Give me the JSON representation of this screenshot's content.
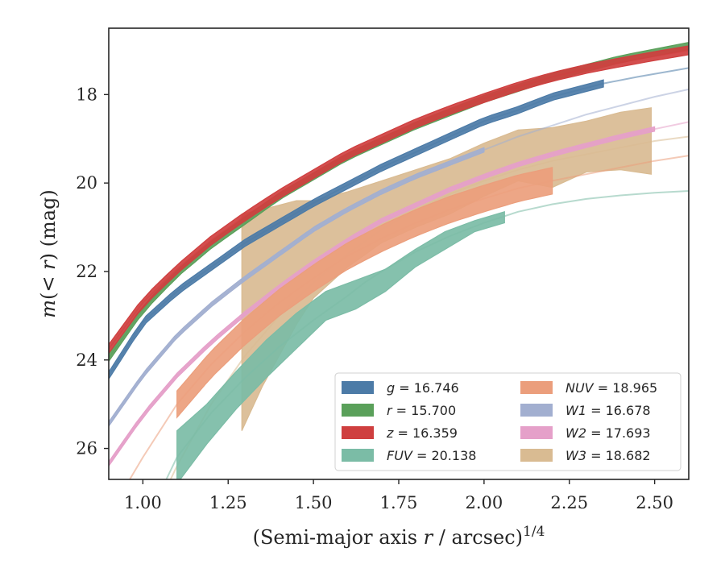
{
  "chart_data": {
    "type": "line",
    "xlabel": "(Semi-major axis r / arcsec)",
    "xlabel_parts": {
      "pre": "(Semi-major axis ",
      "var": "r",
      "post": " / arcsec)",
      "sup": "1/4"
    },
    "ylabel_parts": {
      "m": "m",
      "open": "(",
      "lt": "< ",
      "r": "r",
      "close": ")",
      "unit": " (mag)"
    },
    "xlim": [
      0.9,
      2.6
    ],
    "ylim": [
      26.7,
      16.5
    ],
    "y_inverted": true,
    "xticks": [
      "1.00",
      "1.25",
      "1.50",
      "1.75",
      "2.00",
      "2.25",
      "2.50"
    ],
    "yticks": [
      "18",
      "20",
      "22",
      "24",
      "26"
    ],
    "grid": false,
    "legend_position": "lower-right",
    "series": [
      {
        "name": "g = 16.746",
        "band": "g",
        "value": "16.746",
        "color": "#4c7ba7",
        "x": [
          0.9,
          1.0,
          1.1,
          1.2,
          1.3,
          1.4,
          1.5,
          1.6,
          1.7,
          1.8,
          1.9,
          2.0,
          2.1,
          2.2,
          2.35,
          2.45,
          2.6
        ],
        "y": [
          24.35,
          23.15,
          22.45,
          21.9,
          21.35,
          20.9,
          20.45,
          20.05,
          19.65,
          19.3,
          18.95,
          18.6,
          18.35,
          18.05,
          17.75,
          17.6,
          17.4
        ],
        "measured_xmax": 2.35,
        "band_halfwidth": 0.08
      },
      {
        "name": "r = 15.700",
        "band": "r",
        "value": "15.700",
        "color": "#5aa05a",
        "x": [
          0.9,
          1.0,
          1.1,
          1.2,
          1.3,
          1.4,
          1.5,
          1.6,
          1.7,
          1.8,
          1.9,
          2.0,
          2.1,
          2.2,
          2.3,
          2.4,
          2.5,
          2.6
        ],
        "y": [
          23.95,
          22.85,
          22.05,
          21.4,
          20.85,
          20.3,
          19.85,
          19.4,
          19.05,
          18.7,
          18.4,
          18.1,
          17.85,
          17.6,
          17.4,
          17.2,
          17.05,
          16.9
        ],
        "measured_xmax": 2.6,
        "band_halfwidth": 0.08
      },
      {
        "name": "z = 16.359",
        "band": "z",
        "value": "16.359",
        "color": "#cf3f3f",
        "x": [
          0.9,
          1.0,
          1.1,
          1.2,
          1.3,
          1.4,
          1.5,
          1.6,
          1.7,
          1.8,
          1.9,
          2.0,
          2.1,
          2.2,
          2.3,
          2.4,
          2.5,
          2.6
        ],
        "y": [
          23.75,
          22.7,
          21.95,
          21.3,
          20.75,
          20.25,
          19.8,
          19.35,
          19.0,
          18.65,
          18.35,
          18.08,
          17.82,
          17.6,
          17.42,
          17.27,
          17.13,
          17.0
        ],
        "measured_xmax": 2.6,
        "band_halfwidth": 0.1
      },
      {
        "name": "FUV = 20.138",
        "band": "FUV",
        "value": "20.138",
        "color": "#7bbca6",
        "x": [
          1.05,
          1.1,
          1.2,
          1.3,
          1.4,
          1.5,
          1.6,
          1.65,
          1.7,
          1.8,
          1.9,
          2.0,
          2.06,
          2.1,
          2.2,
          2.3,
          2.4,
          2.5,
          2.6
        ],
        "y": [
          27.0,
          26.2,
          25.2,
          24.4,
          23.7,
          23.1,
          22.55,
          22.25,
          22.0,
          21.55,
          21.2,
          20.9,
          20.75,
          20.65,
          20.48,
          20.36,
          20.28,
          20.22,
          20.18
        ],
        "measured_xmin": 1.1,
        "measured_xmax": 2.06,
        "band_halfwidth": 0.25,
        "band_upper": [
          25.6,
          25.0,
          24.25,
          23.55,
          22.95,
          22.45,
          22.2,
          21.95,
          21.5,
          21.1,
          20.85,
          20.65
        ],
        "band_lower": [
          26.8,
          25.9,
          25.1,
          24.4,
          23.75,
          23.1,
          22.85,
          22.45,
          21.9,
          21.5,
          21.1,
          20.9
        ]
      },
      {
        "name": "NUV = 18.965",
        "band": "NUV",
        "value": "18.965",
        "color": "#eb9e7c",
        "x": [
          0.9,
          1.0,
          1.1,
          1.2,
          1.3,
          1.4,
          1.5,
          1.6,
          1.7,
          1.8,
          1.9,
          2.0,
          2.1,
          2.2,
          2.3,
          2.4,
          2.5,
          2.6
        ],
        "y": [
          27.5,
          26.2,
          25.0,
          24.1,
          23.35,
          22.7,
          22.15,
          21.65,
          21.25,
          20.9,
          20.6,
          20.35,
          20.12,
          19.95,
          19.8,
          19.65,
          19.5,
          19.38
        ],
        "measured_xmin": 1.1,
        "measured_xmax": 2.2,
        "band_halfwidth": 0.3
      },
      {
        "name": "W1 = 16.678",
        "band": "W1",
        "value": "16.678",
        "color": "#a2afd0",
        "x": [
          0.9,
          1.0,
          1.1,
          1.2,
          1.3,
          1.4,
          1.5,
          1.6,
          1.7,
          1.8,
          1.9,
          2.0,
          2.1,
          2.2,
          2.3,
          2.4,
          2.5,
          2.6
        ],
        "y": [
          25.45,
          24.35,
          23.45,
          22.75,
          22.15,
          21.6,
          21.05,
          20.6,
          20.2,
          19.85,
          19.55,
          19.25,
          18.95,
          18.7,
          18.45,
          18.25,
          18.05,
          17.88
        ],
        "measured_xmax": 2.0,
        "band_halfwidth": 0.05
      },
      {
        "name": "W2 = 17.693",
        "band": "W2",
        "value": "17.693",
        "color": "#e5a0c9",
        "x": [
          0.9,
          1.0,
          1.1,
          1.2,
          1.3,
          1.4,
          1.5,
          1.6,
          1.7,
          1.8,
          1.9,
          2.0,
          2.1,
          2.2,
          2.3,
          2.4,
          2.5,
          2.6
        ],
        "y": [
          26.35,
          25.25,
          24.35,
          23.6,
          22.95,
          22.35,
          21.8,
          21.3,
          20.85,
          20.5,
          20.15,
          19.85,
          19.58,
          19.35,
          19.15,
          18.95,
          18.78,
          18.62
        ],
        "measured_xmax": 2.5,
        "band_halfwidth": 0.05
      },
      {
        "name": "W3 = 18.682",
        "band": "W3",
        "value": "18.682",
        "color": "#d9bb92",
        "x": [
          1.0,
          1.1,
          1.2,
          1.3,
          1.4,
          1.5,
          1.6,
          1.7,
          1.8,
          1.9,
          2.0,
          2.1,
          2.2,
          2.3,
          2.4,
          2.5,
          2.6
        ],
        "y": [
          28.0,
          26.4,
          25.0,
          23.9,
          23.0,
          22.25,
          21.6,
          21.05,
          20.6,
          20.25,
          19.95,
          19.7,
          19.5,
          19.35,
          19.2,
          19.05,
          18.95
        ],
        "measured_xmin": 1.29,
        "measured_xmax": 2.49,
        "band_x": [
          1.29,
          1.35,
          1.45,
          1.5,
          1.6,
          1.7,
          1.8,
          1.9,
          2.0,
          2.1,
          2.2,
          2.3,
          2.4,
          2.49
        ],
        "band_upper": [
          20.7,
          20.6,
          20.4,
          20.4,
          20.2,
          19.95,
          19.7,
          19.45,
          19.1,
          18.8,
          18.75,
          18.6,
          18.4,
          18.3
        ],
        "band_lower": [
          25.6,
          24.6,
          23.2,
          22.6,
          21.9,
          21.35,
          21.0,
          20.7,
          20.3,
          19.95,
          20.1,
          19.75,
          19.7,
          19.8
        ]
      }
    ]
  }
}
